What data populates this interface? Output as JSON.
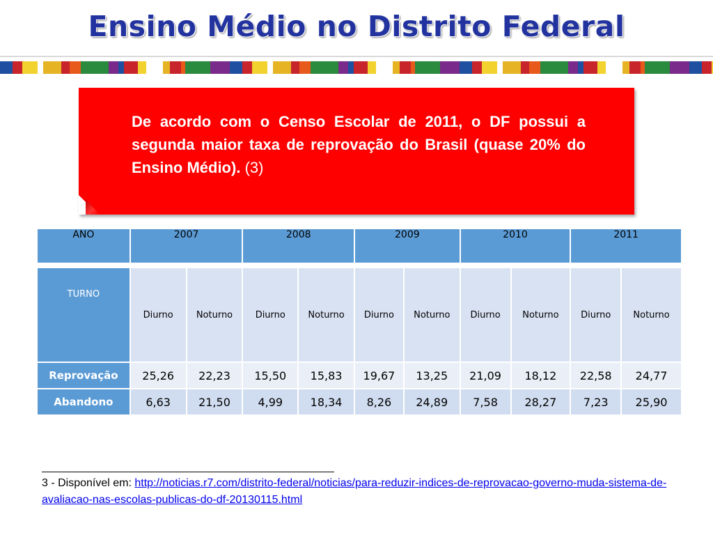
{
  "title": "Ensino Médio no Distrito Federal",
  "callout": {
    "text_bold": "De acordo com o Censo Escolar de 2011, o DF possui a segunda maior taxa de reprovação do Brasil (quase 20% do Ensino Médio).",
    "ref": "(3)"
  },
  "table": {
    "ano_label": "ANO",
    "years": [
      "2007",
      "2008",
      "2009",
      "2010",
      "2011"
    ],
    "turno_label": "TURNO",
    "shifts": [
      "Diurno",
      "Noturno",
      "Diurno",
      "Noturno",
      "Diurno",
      "Noturno",
      "Diurno",
      "Noturno",
      "Diurno",
      "Noturno"
    ],
    "rows": [
      {
        "label": "Reprovação",
        "values": [
          "25,26",
          "22,23",
          "15,50",
          "15,83",
          "19,67",
          "13,25",
          "21,09",
          "18,12",
          "22,58",
          "24,77"
        ]
      },
      {
        "label": "Abandono",
        "values": [
          "6,63",
          "21,50",
          "4,99",
          "18,34",
          "8,26",
          "24,89",
          "7,58",
          "28,27",
          "7,23",
          "25,90"
        ]
      }
    ]
  },
  "footnote": {
    "prefix": "3 - Disponível em: ",
    "link": "http://noticias.r7.com/distrito-federal/noticias/para-reduzir-indices-de-reprovacao-governo-muda-sistema-de-avaliacao-nas-escolas-publicas-do-df-20130115.html"
  },
  "colors": {
    "title": "#2233a0",
    "callout_bg": "#ff0000",
    "header_blue": "#5b9bd5",
    "cell_light": "#e9eef7",
    "cell_mid": "#d0dcef"
  }
}
